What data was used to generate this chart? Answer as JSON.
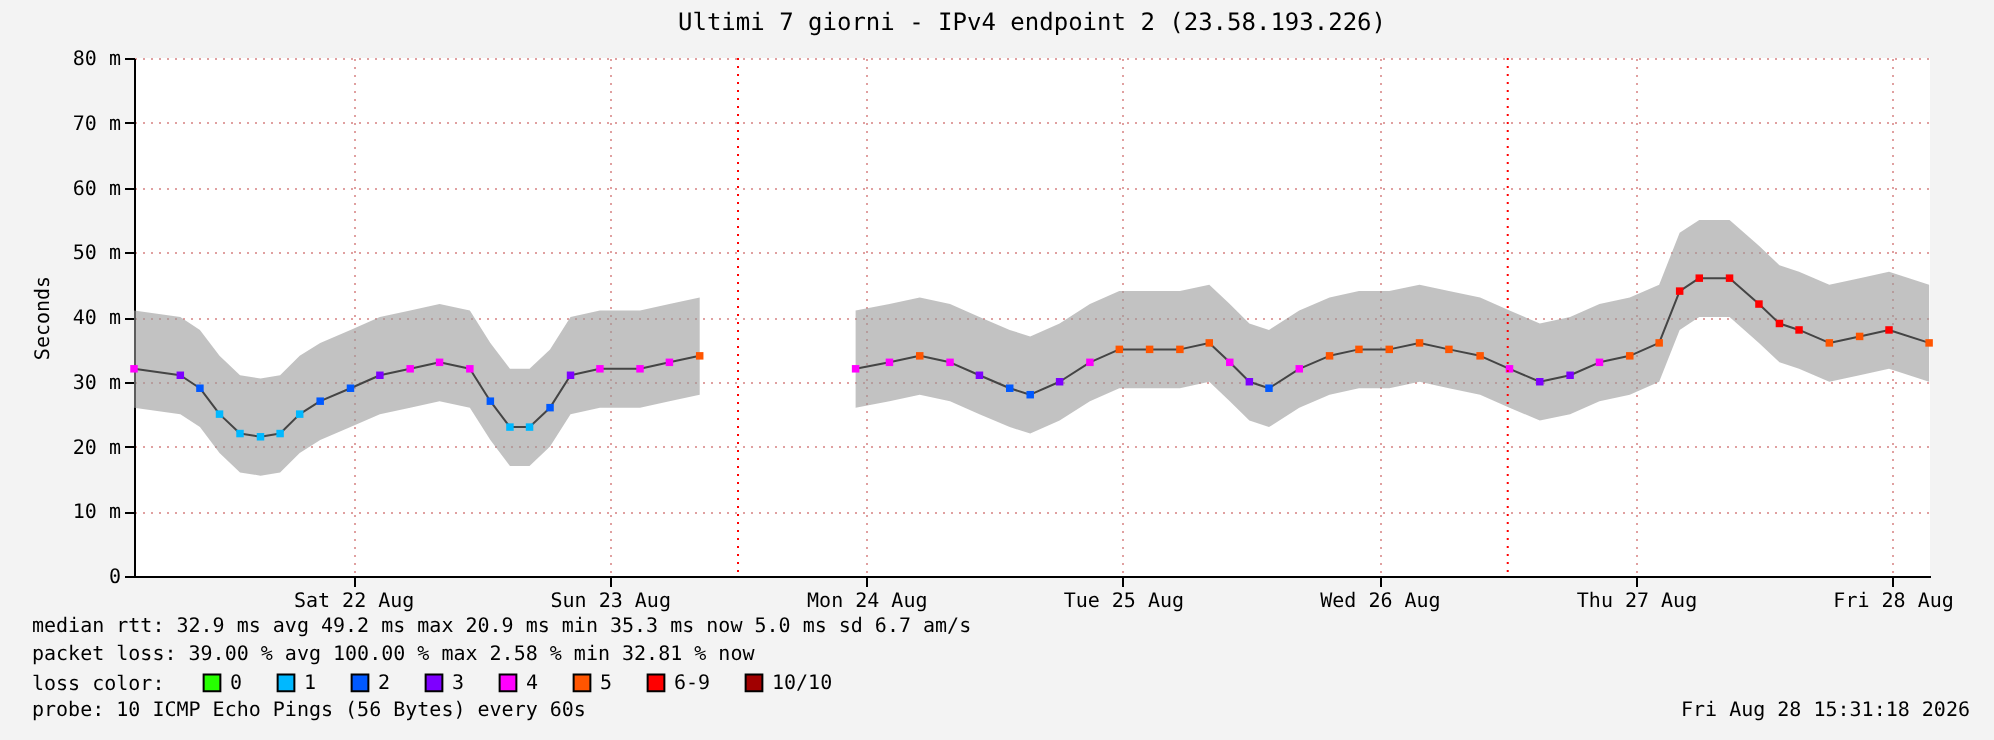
{
  "chart_data": {
    "type": "line",
    "title": "Ultimi 7 giorni - IPv4 endpoint 2 (23.58.193.226)",
    "ylabel": "Seconds",
    "legend_title": "loss color:",
    "legend": "bottom left",
    "grid": true,
    "xlim": [
      "2026-08-21T15:30",
      "2026-08-28T15:30"
    ],
    "xticks": [
      {
        "value": "2026-08-22T12:00",
        "label": "Sat 22 Aug"
      },
      {
        "value": "2026-08-23T12:00",
        "label": "Sun 23 Aug"
      },
      {
        "value": "2026-08-24T12:00",
        "label": "Mon 24 Aug"
      },
      {
        "value": "2026-08-25T12:00",
        "label": "Tue 25 Aug"
      },
      {
        "value": "2026-08-26T12:00",
        "label": "Wed 26 Aug"
      },
      {
        "value": "2026-08-27T12:00",
        "label": "Thu 27 Aug"
      },
      {
        "value": "2026-08-28T12:00",
        "label": "Fri 28 Aug"
      }
    ],
    "ylim": [
      0,
      80
    ],
    "yticks": [
      0,
      {
        "value": 10,
        "label": "10 m"
      },
      {
        "value": 20,
        "label": "20 m"
      },
      {
        "value": 30,
        "label": "30 m"
      },
      {
        "value": 40,
        "label": "40 m"
      },
      {
        "value": 50,
        "label": "50 m"
      },
      {
        "value": 60,
        "label": "60 m"
      },
      {
        "value": 70,
        "label": "70 m"
      },
      {
        "value": 80,
        "label": "80 m"
      }
    ],
    "ref_lines": [
      {
        "axis": "x",
        "value": "2026-08-24T00:00",
        "color": "#ff0000",
        "line_style": "dotted"
      },
      {
        "axis": "x",
        "value": "2026-08-27T00:00",
        "color": "#ff0000",
        "line_style": "dotted"
      }
    ],
    "annotations": [
      "median rtt:  32.9 ms avg  49.2 ms max  20.9 ms min  35.3 ms now  5.0 ms sd  6.7  am/s",
      "packet loss: 39.00 % avg  100.00 % max  2.58 % min  32.81 % now",
      "probe:       10 ICMP Echo Pings (56 Bytes) every 60s",
      "Fri Aug 28 15:31:18 2026"
    ],
    "series": [
      {
        "color": "#444444",
        "x": [
          "2026-08-21T15:30",
          "2026-08-21T19:50",
          "2026-08-21T21:40",
          "2026-08-21T23:30",
          "2026-08-22T01:25",
          "2026-08-22T03:20",
          "2026-08-22T05:10",
          "2026-08-22T07:00",
          "2026-08-22T08:55",
          "2026-08-22T11:45",
          "2026-08-22T14:30",
          "2026-08-22T17:20",
          "2026-08-22T20:05",
          "2026-08-22T22:55",
          "2026-08-23T00:50",
          "2026-08-23T02:40",
          "2026-08-23T04:30",
          "2026-08-23T06:25",
          "2026-08-23T08:20",
          "2026-08-23T11:05",
          "2026-08-23T14:50",
          "2026-08-23T17:35",
          "2026-08-23T20:25",
          "2026-08-24T00:00",
          "2026-08-24T11:00",
          "2026-08-24T14:10",
          "2026-08-24T17:00",
          "2026-08-24T19:50",
          "2026-08-24T22:35",
          "2026-08-25T01:25",
          "2026-08-25T03:20",
          "2026-08-25T06:05",
          "2026-08-25T08:55",
          "2026-08-25T11:40",
          "2026-08-25T14:30",
          "2026-08-25T17:20",
          "2026-08-25T20:05",
          "2026-08-25T22:00",
          "2026-08-25T23:50",
          "2026-08-26T01:40",
          "2026-08-26T04:30",
          "2026-08-26T07:20",
          "2026-08-26T10:05",
          "2026-08-26T12:55",
          "2026-08-26T15:45",
          "2026-08-26T18:30",
          "2026-08-26T21:25",
          "2026-08-27T00:10",
          "2026-08-27T03:00",
          "2026-08-27T05:50",
          "2026-08-27T08:35",
          "2026-08-27T11:25",
          "2026-08-27T14:10",
          "2026-08-27T16:05",
          "2026-08-27T17:55",
          "2026-08-27T20:45",
          "2026-08-27T23:30",
          "2026-08-28T01:25",
          "2026-08-28T03:15",
          "2026-08-28T06:05",
          "2026-08-28T08:55",
          "2026-08-28T11:40",
          "2026-08-28T15:25"
        ],
        "values": [
          32,
          31,
          29,
          25,
          22,
          21.5,
          22,
          25,
          27,
          29,
          31,
          32,
          33,
          32,
          27,
          23,
          23,
          26,
          31,
          32,
          32,
          33,
          34,
          null,
          32,
          33,
          34,
          33,
          31,
          29,
          28,
          30,
          33,
          35,
          35,
          35,
          36,
          33,
          30,
          29,
          32,
          34,
          35,
          35,
          36,
          35,
          34,
          32,
          30,
          31,
          33,
          34,
          36,
          44,
          46,
          46,
          42,
          39,
          38,
          36,
          37,
          38,
          36
        ],
        "lower": [
          26,
          25,
          23,
          19,
          16,
          15.5,
          16,
          19,
          21,
          23,
          25,
          26,
          27,
          26,
          21,
          17,
          17,
          20,
          25,
          26,
          26,
          27,
          28,
          null,
          26,
          27,
          28,
          27,
          25,
          23,
          22,
          24,
          27,
          29,
          29,
          29,
          30,
          27,
          24,
          23,
          26,
          28,
          29,
          29,
          30,
          29,
          28,
          26,
          24,
          25,
          27,
          28,
          30,
          38,
          40,
          40,
          36,
          33,
          32,
          30,
          31,
          32,
          30
        ],
        "upper": [
          41,
          40,
          38,
          34,
          31,
          30.5,
          31,
          34,
          36,
          38,
          40,
          41,
          42,
          41,
          36,
          32,
          32,
          35,
          40,
          41,
          41,
          42,
          43,
          null,
          41,
          42,
          43,
          42,
          40,
          38,
          37,
          39,
          42,
          44,
          44,
          44,
          45,
          42,
          39,
          38,
          41,
          43,
          44,
          44,
          45,
          44,
          43,
          41,
          39,
          40,
          42,
          43,
          45,
          53,
          55,
          55,
          51,
          48,
          47,
          45,
          46,
          47,
          45
        ]
      },
      {
        "type": "scatter",
        "name": "0",
        "color": "#26ff00",
        "marker": "square"
      },
      {
        "type": "scatter",
        "name": "1",
        "color": "#00b8ff",
        "marker": "square",
        "x": [
          "2026-08-21T23:30",
          "2026-08-22T01:25",
          "2026-08-22T03:20",
          "2026-08-22T05:10",
          "2026-08-22T07:00",
          "2026-08-23T02:40",
          "2026-08-23T04:30"
        ],
        "values": [
          25,
          22,
          21.5,
          22,
          25,
          23,
          23
        ]
      },
      {
        "type": "scatter",
        "name": "2",
        "color": "#0059ff",
        "marker": "square",
        "x": [
          "2026-08-21T21:40",
          "2026-08-22T08:55",
          "2026-08-22T11:45",
          "2026-08-23T00:50",
          "2026-08-23T06:25",
          "2026-08-25T01:25",
          "2026-08-25T03:20",
          "2026-08-26T01:40"
        ],
        "values": [
          29,
          27,
          29,
          27,
          26,
          29,
          28,
          29
        ]
      },
      {
        "type": "scatter",
        "name": "3",
        "color": "#7e00ff",
        "marker": "square",
        "x": [
          "2026-08-21T19:50",
          "2026-08-22T14:30",
          "2026-08-23T08:20",
          "2026-08-24T22:35",
          "2026-08-25T06:05",
          "2026-08-25T23:50",
          "2026-08-27T03:00",
          "2026-08-27T05:50"
        ],
        "values": [
          31,
          31,
          31,
          31,
          30,
          30,
          30,
          31
        ]
      },
      {
        "type": "scatter",
        "name": "4",
        "color": "#ff00fe",
        "marker": "square",
        "x": [
          "2026-08-21T15:30",
          "2026-08-22T17:20",
          "2026-08-22T20:05",
          "2026-08-22T22:55",
          "2026-08-23T11:05",
          "2026-08-23T14:50",
          "2026-08-23T17:35",
          "2026-08-24T11:00",
          "2026-08-24T14:10",
          "2026-08-24T19:50",
          "2026-08-25T08:55",
          "2026-08-25T22:00",
          "2026-08-26T04:30",
          "2026-08-27T00:10",
          "2026-08-27T08:35"
        ],
        "values": [
          32,
          32,
          33,
          32,
          32,
          32,
          33,
          32,
          33,
          33,
          33,
          33,
          32,
          32,
          33
        ]
      },
      {
        "type": "scatter",
        "name": "5",
        "color": "#ff5500",
        "marker": "square",
        "x": [
          "2026-08-23T20:25",
          "2026-08-24T17:00",
          "2026-08-25T11:40",
          "2026-08-25T14:30",
          "2026-08-25T17:20",
          "2026-08-25T20:05",
          "2026-08-26T07:20",
          "2026-08-26T10:05",
          "2026-08-26T12:55",
          "2026-08-26T15:45",
          "2026-08-26T18:30",
          "2026-08-26T21:25",
          "2026-08-27T11:25",
          "2026-08-27T14:10",
          "2026-08-28T06:05",
          "2026-08-28T08:55",
          "2026-08-28T15:25"
        ],
        "values": [
          34,
          34,
          35,
          35,
          35,
          36,
          34,
          35,
          35,
          36,
          35,
          34,
          34,
          36,
          36,
          37,
          36
        ]
      },
      {
        "type": "scatter",
        "name": "6-9",
        "color": "#ff0000",
        "marker": "square",
        "x": [
          "2026-08-27T16:05",
          "2026-08-27T17:55",
          "2026-08-27T20:45",
          "2026-08-27T23:30",
          "2026-08-28T01:25",
          "2026-08-28T03:15",
          "2026-08-28T11:40"
        ],
        "values": [
          44,
          46,
          46,
          42,
          39,
          38,
          38
        ]
      },
      {
        "type": "scatter",
        "name": "10/10",
        "color": "#a10000",
        "marker": "square"
      }
    ]
  }
}
